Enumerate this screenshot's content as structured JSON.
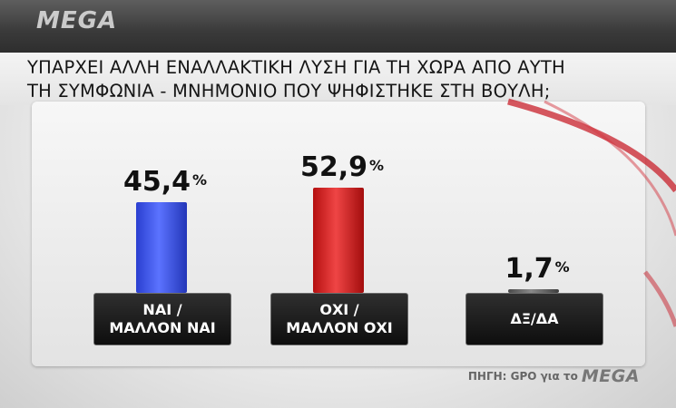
{
  "brand": {
    "logo": "MEGA"
  },
  "title_lines": [
    "ΥΠΑΡΧΕΙ ΑΛΛΗ ΕΝΑΛΛΑΚΤΙΚΗ ΛΥΣΗ ΓΙΑ ΤΗ ΧΩΡΑ ΑΠΟ ΑΥΤΗ",
    "ΤΗ ΣΥΜΦΩΝΙΑ - ΜΝΗΜΟΝΙΟ ΠΟΥ ΨΗΦΙΣΤΗΚΕ ΣΤΗ ΒΟΥΛΗ;"
  ],
  "chart_data": {
    "type": "bar",
    "title": "ΥΠΑΡΧΕΙ ΑΛΛΗ ΕΝΑΛΛΑΚΤΙΚΗ ΛΥΣΗ ΓΙΑ ΤΗ ΧΩΡΑ ΑΠΟ ΑΥΤΗ ΤΗ ΣΥΜΦΩΝΙΑ - ΜΝΗΜΟΝΙΟ ΠΟΥ ΨΗΦΙΣΤΗΚΕ ΣΤΗ ΒΟΥΛΗ;",
    "categories": [
      "ΝΑΙ / ΜΑΛΛΟΝ ΝΑΙ",
      "ΟΧΙ / ΜΑΛΛΟΝ ΟΧΙ",
      "ΔΞ/ΔΑ"
    ],
    "category_lines": [
      [
        "ΝΑΙ /",
        "ΜΑΛΛΟΝ ΝΑΙ"
      ],
      [
        "ΟΧΙ /",
        "ΜΑΛΛΟΝ ΟΧΙ"
      ],
      [
        "ΔΞ/ΔΑ"
      ]
    ],
    "values": [
      45.4,
      52.9,
      1.7
    ],
    "value_labels": [
      "45,4",
      "52,9",
      "1,7"
    ],
    "unit": "%",
    "colors": [
      "#3a55f0",
      "#dd2a2a",
      "#666666"
    ],
    "ylim": [
      0,
      100
    ],
    "grid": false,
    "legend": "none"
  },
  "source": {
    "prefix": "ΠΗΓΗ: GPO για το",
    "logo": "MEGA"
  }
}
